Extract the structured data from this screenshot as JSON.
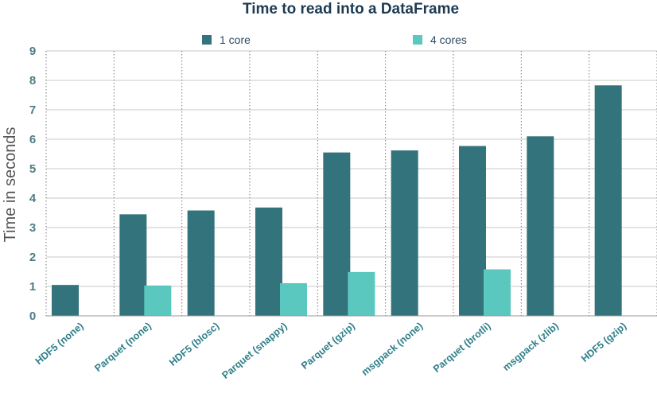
{
  "chart_data": {
    "type": "bar",
    "title": "Time to read into a DataFrame",
    "xlabel": "",
    "ylabel": "Time in seconds",
    "ylim": [
      0,
      9
    ],
    "yticks": [
      0,
      1,
      2,
      3,
      4,
      5,
      6,
      7,
      8,
      9
    ],
    "grid": true,
    "legend_position": "top",
    "categories": [
      "HDF5 (none)",
      "Parquet (none)",
      "HDF5 (blosc)",
      "Parquet (snappy)",
      "Parquet (gzip)",
      "msgpack (none)",
      "Parquet (brotli)",
      "msgpack (zlib)",
      "HDF5 (gzip)"
    ],
    "series": [
      {
        "name": "1 core",
        "color": "#33737b",
        "values": [
          1.05,
          3.45,
          3.58,
          3.68,
          5.55,
          5.62,
          5.77,
          6.1,
          7.83
        ]
      },
      {
        "name": "4 cores",
        "color": "#5ac8be",
        "values": [
          null,
          1.03,
          null,
          1.11,
          1.49,
          null,
          1.58,
          null,
          null
        ]
      }
    ]
  }
}
